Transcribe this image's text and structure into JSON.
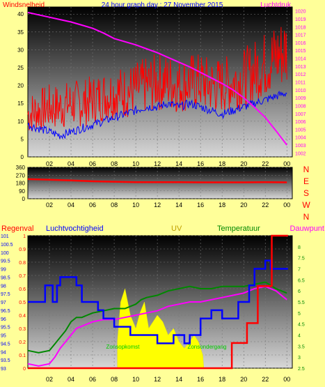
{
  "title": "24 hour graph day : 27 November 2015",
  "colors": {
    "background": "#ffff99",
    "wind": "#ff0000",
    "wind_avg": "#0000ff",
    "pressure": "#ff00ff",
    "direction": "#ff0000",
    "humidity": "#0000ff",
    "rain": "#ff0000",
    "temperature": "#008800",
    "dewpoint": "#ff00ff",
    "uv_fill": "#ffff00",
    "sun_text": "#00cc00"
  },
  "chart_data": [
    {
      "type": "line",
      "name": "wind-pressure",
      "left_label": "Windsnelheid",
      "right_label": "Luchtdruk",
      "x_ticks": [
        "02",
        "04",
        "06",
        "08",
        "10",
        "12",
        "14",
        "16",
        "18",
        "20",
        "22",
        "00"
      ],
      "ylim_left": [
        0,
        42
      ],
      "y_ticks_left": [
        0,
        5,
        10,
        15,
        20,
        25,
        30,
        35,
        40
      ],
      "ylim_right": [
        1001.5,
        1020.5
      ],
      "y_ticks_right": [
        1002,
        1003,
        1004,
        1005,
        1006,
        1007,
        1008,
        1009,
        1010,
        1011,
        1012,
        1013,
        1014,
        1015,
        1016,
        1017,
        1018,
        1019,
        1020
      ],
      "x_range": [
        0,
        24.5
      ],
      "grid": true,
      "series": [
        {
          "id": "wind_max",
          "x": [
            0,
            1,
            2,
            3,
            4,
            5,
            6,
            7,
            8,
            9,
            10,
            11,
            12,
            13,
            14,
            15,
            16,
            17,
            18,
            19,
            20,
            21,
            22,
            23,
            24
          ],
          "y": [
            12,
            13,
            14,
            14,
            15,
            15,
            16,
            17,
            18,
            18,
            19,
            20,
            21,
            21,
            20,
            21,
            21,
            20,
            20,
            21,
            22,
            24,
            26,
            28,
            30
          ]
        },
        {
          "id": "wind_avg",
          "x": [
            0,
            1,
            2,
            3,
            4,
            5,
            6,
            7,
            8,
            9,
            10,
            11,
            12,
            13,
            14,
            15,
            16,
            17,
            18,
            19,
            20,
            21,
            22,
            23,
            24
          ],
          "y": [
            9,
            8,
            7,
            6,
            7,
            8,
            9,
            10,
            11,
            12,
            13,
            14,
            14,
            15,
            14,
            15,
            14,
            13,
            12,
            13,
            14,
            15,
            16,
            17,
            18
          ]
        },
        {
          "id": "pressure",
          "x": [
            0,
            1,
            2,
            3,
            4,
            5,
            6,
            7,
            8,
            9,
            10,
            11,
            12,
            13,
            14,
            15,
            16,
            17,
            18,
            19,
            20,
            21,
            22,
            23,
            24
          ],
          "y": [
            1019.8,
            1019.5,
            1019.2,
            1018.9,
            1018.6,
            1018.2,
            1017.8,
            1017.2,
            1016.5,
            1016.1,
            1015.7,
            1015.2,
            1014.7,
            1014.1,
            1013.5,
            1012.9,
            1012.2,
            1011.5,
            1010.8,
            1010.0,
            1009.0,
            1007.8,
            1006.5,
            1004.8,
            1003.0
          ]
        }
      ]
    },
    {
      "type": "line",
      "name": "wind-direction",
      "ylim_left": [
        0,
        360
      ],
      "y_ticks_left": [
        0,
        90,
        180,
        270,
        360
      ],
      "compass": [
        "N",
        "W",
        "S",
        "E",
        "N"
      ],
      "x_range": [
        0,
        24.5
      ],
      "series": [
        {
          "id": "direction",
          "x": [
            0,
            2,
            4,
            6,
            8,
            10,
            12,
            14,
            16,
            18,
            20,
            22,
            24
          ],
          "y": [
            225,
            218,
            210,
            200,
            195,
            190,
            190,
            190,
            188,
            188,
            188,
            190,
            188
          ]
        }
      ]
    },
    {
      "type": "line",
      "name": "humidity-uv-temp",
      "labels": {
        "rain": "Regenval",
        "humidity": "Luchtvochtigheid",
        "uv": "UV",
        "temp": "Temperatuur",
        "dew": "Dauwpunt"
      },
      "annotations": {
        "sunrise": "Zonsopkomst",
        "sunset": "Zonsondergang"
      },
      "ylim_humidity": [
        93,
        101
      ],
      "y_ticks_humidity": [
        93,
        93.5,
        94,
        94.5,
        95,
        95.5,
        96,
        96.5,
        97,
        97.5,
        98,
        98.5,
        99,
        99.5,
        100,
        100.5,
        101
      ],
      "ylim_rain": [
        0,
        1
      ],
      "y_ticks_rain": [
        0,
        0.1,
        0.2,
        0.3,
        0.4,
        0.5,
        0.6,
        0.7,
        0.8,
        0.9,
        1
      ],
      "ylim_temp": [
        2.5,
        8.5
      ],
      "y_ticks_temp": [
        2.5,
        3,
        3.5,
        4,
        4.5,
        5,
        5.5,
        6,
        6.5,
        7,
        7.5,
        8
      ],
      "x_range": [
        0,
        24.5
      ],
      "series": [
        {
          "id": "humidity",
          "x": [
            0,
            1.6,
            1.6,
            2.3,
            2.3,
            2.7,
            2.7,
            3,
            3,
            4.5,
            4.5,
            5,
            5,
            6.5,
            6.5,
            7,
            7,
            8,
            8,
            9.5,
            9.5,
            12,
            12,
            13.5,
            13.5,
            14.5,
            14.5,
            15,
            15,
            16,
            16,
            17,
            17,
            18,
            18,
            19.5,
            19.5,
            20.5,
            20.5,
            21,
            21,
            22,
            22,
            22.5,
            22.5,
            24.1
          ],
          "y": [
            97,
            97,
            98,
            98,
            97,
            97,
            98,
            98,
            98.5,
            98.5,
            98,
            98,
            97,
            97,
            96.5,
            96.5,
            96,
            96,
            95.5,
            95.5,
            95,
            95,
            94.5,
            94.5,
            95,
            95,
            94.5,
            94.5,
            95,
            95,
            96,
            96,
            96.5,
            96.5,
            96,
            96,
            97,
            97,
            98,
            98,
            99,
            99,
            99.5,
            99.5,
            99,
            99
          ]
        },
        {
          "id": "rain",
          "x": [
            0,
            18.9,
            18.9,
            20.3,
            20.3,
            21.3,
            21.3,
            22.6,
            22.6,
            24.1
          ],
          "y": [
            0,
            0,
            0.19,
            0.19,
            0.34,
            0.34,
            0.62,
            0.62,
            1,
            1
          ]
        },
        {
          "id": "temperature",
          "x": [
            0,
            1,
            2,
            2.5,
            3,
            3.5,
            4,
            4.5,
            5,
            5.5,
            6,
            7,
            8,
            9,
            10,
            10.5,
            11,
            12,
            13,
            14,
            15,
            16,
            17,
            18,
            19,
            20,
            21,
            22,
            23,
            24
          ],
          "y": [
            3.3,
            3.2,
            3.3,
            3.6,
            3.9,
            4.2,
            4.6,
            4.8,
            4.8,
            4.9,
            5.0,
            5.1,
            5.2,
            5.2,
            5.4,
            5.6,
            5.7,
            5.8,
            6.0,
            6.1,
            6.2,
            6.1,
            6.1,
            6.2,
            6.2,
            6.2,
            6.3,
            6.4,
            6.1,
            5.9
          ]
        },
        {
          "id": "dewpoint",
          "x": [
            0,
            1,
            2,
            2.5,
            3,
            3.5,
            4,
            4.5,
            5,
            5.5,
            6,
            7,
            8,
            9,
            10,
            11,
            12,
            13,
            14,
            15,
            16,
            17,
            18,
            19,
            20,
            21,
            22,
            23,
            24
          ],
          "y": [
            2.7,
            2.6,
            2.7,
            3.0,
            3.4,
            3.7,
            4.0,
            4.3,
            4.4,
            4.5,
            4.6,
            4.7,
            4.7,
            4.8,
            4.9,
            5.0,
            5.1,
            5.3,
            5.4,
            5.5,
            5.5,
            5.6,
            5.7,
            5.8,
            5.9,
            6.1,
            6.2,
            6.0,
            5.6
          ]
        },
        {
          "id": "uv",
          "x": [
            8.3,
            8.6,
            9,
            9.5,
            10,
            10.4,
            10.8,
            11.2,
            11.6,
            12,
            12.5,
            13,
            13.5,
            14,
            14.5,
            15,
            15.4,
            15.8,
            16.2,
            16.3
          ],
          "y": [
            0.2,
            0.5,
            0.6,
            0.4,
            0.3,
            0.42,
            0.5,
            0.3,
            0.35,
            0.4,
            0.35,
            0.25,
            0.3,
            0.2,
            0.15,
            0.2,
            0.25,
            0.2,
            0.1,
            0
          ]
        }
      ]
    }
  ]
}
